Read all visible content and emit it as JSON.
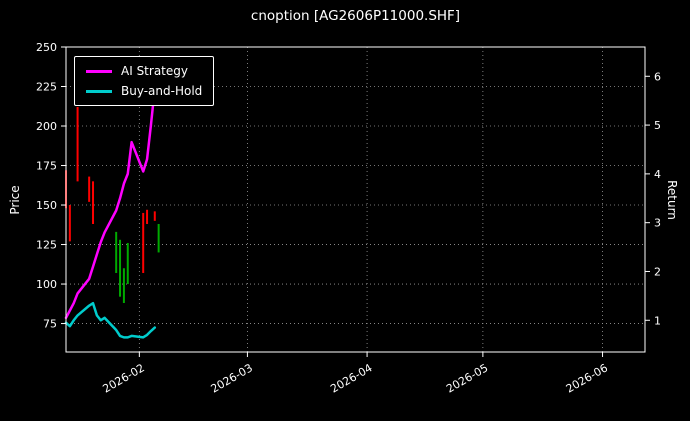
{
  "colors": {
    "background": "#000000",
    "text": "#ffffff",
    "grid": "#9a9a9a",
    "spine": "#ffffff",
    "up": "#00aa00",
    "down": "#ff0000"
  },
  "chart_data": {
    "type": "line",
    "title": "cnoption [AG2606P11000.SHF]",
    "xlabel": "",
    "ylabel": "Price",
    "ylabel_right": "Return",
    "grid": true,
    "legend_position": "upper left",
    "x_start_date": "2026-01-13",
    "x_domain_days": [
      0,
      150
    ],
    "xticks": [
      {
        "day": 19,
        "label": "2026-02"
      },
      {
        "day": 47,
        "label": "2026-03"
      },
      {
        "day": 78,
        "label": "2026-04"
      },
      {
        "day": 108,
        "label": "2026-05"
      },
      {
        "day": 139,
        "label": "2026-06"
      }
    ],
    "ylim_left": [
      57,
      250
    ],
    "yticks_left": [
      75,
      100,
      125,
      150,
      175,
      200,
      225,
      250
    ],
    "ylim_right": [
      0.35,
      6.6
    ],
    "yticks_right": [
      1,
      2,
      3,
      4,
      5,
      6
    ],
    "series": [
      {
        "name": "AI Strategy",
        "color": "#ff00ff",
        "axis": "right",
        "x": [
          0,
          1,
          2,
          3,
          6,
          7,
          8,
          9,
          10,
          13,
          14,
          15,
          16,
          17,
          20,
          21,
          22,
          23
        ],
        "values": [
          1.05,
          1.2,
          1.35,
          1.55,
          1.85,
          2.1,
          2.35,
          2.6,
          2.8,
          3.25,
          3.5,
          3.8,
          4.0,
          4.65,
          4.05,
          4.3,
          5.0,
          5.75
        ]
      },
      {
        "name": "Buy-and-Hold",
        "color": "#00cccc",
        "axis": "right",
        "x": [
          0,
          1,
          2,
          3,
          6,
          7,
          8,
          9,
          10,
          13,
          14,
          15,
          16,
          17,
          20,
          21,
          22,
          23
        ],
        "values": [
          0.95,
          0.88,
          1.0,
          1.1,
          1.3,
          1.35,
          1.1,
          1.0,
          1.05,
          0.8,
          0.68,
          0.65,
          0.65,
          0.68,
          0.65,
          0.7,
          0.78,
          0.85
        ]
      }
    ],
    "candles": [
      {
        "x": 0,
        "low": 148,
        "high": 172,
        "color": "down"
      },
      {
        "x": 1,
        "low": 127,
        "high": 150,
        "color": "down"
      },
      {
        "x": 3,
        "low": 165,
        "high": 212,
        "color": "down"
      },
      {
        "x": 6,
        "low": 152,
        "high": 168,
        "color": "down"
      },
      {
        "x": 7,
        "low": 138,
        "high": 165,
        "color": "down"
      },
      {
        "x": 13,
        "low": 107,
        "high": 133,
        "color": "up"
      },
      {
        "x": 14,
        "low": 92,
        "high": 128,
        "color": "up"
      },
      {
        "x": 15,
        "low": 88,
        "high": 110,
        "color": "up"
      },
      {
        "x": 16,
        "low": 100,
        "high": 126,
        "color": "up"
      },
      {
        "x": 20,
        "low": 107,
        "high": 145,
        "color": "down"
      },
      {
        "x": 21,
        "low": 138,
        "high": 147,
        "color": "down"
      },
      {
        "x": 23,
        "low": 140,
        "high": 146,
        "color": "down"
      },
      {
        "x": 24,
        "low": 120,
        "high": 138,
        "color": "up"
      }
    ]
  }
}
